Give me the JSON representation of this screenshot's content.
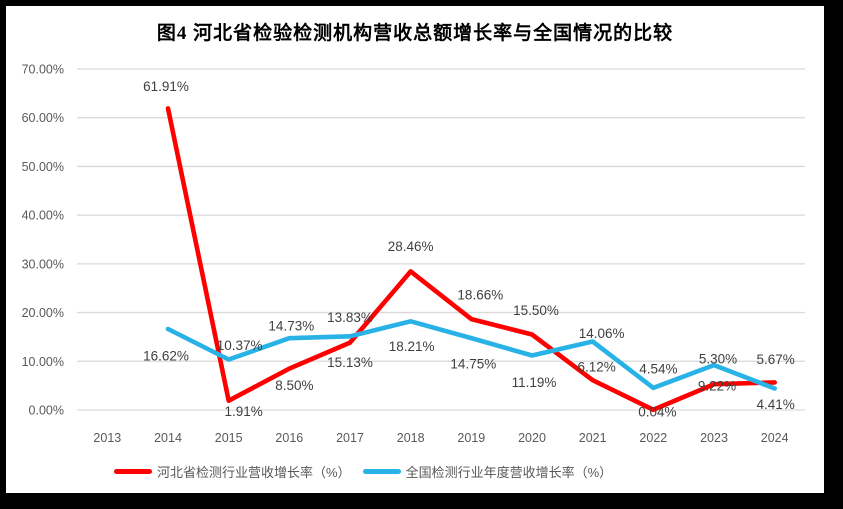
{
  "frame": {
    "background": "#000000",
    "card_background": "#FFFFFF"
  },
  "title": "图4 河北省检验检测机构营收总额增长率与全国情况的比较",
  "colors": {
    "hebei_line": "#FF0000",
    "national_line": "#29B2E6",
    "gridline": "#D9D9D9",
    "axis_text": "#595959",
    "data_label_text": "#3F3F3F",
    "title_text": "#000000"
  },
  "chart_data": {
    "type": "line",
    "title": "图4 河北省检验检测机构营收总额增长率与全国情况的比较",
    "categories": [
      "2013",
      "2014",
      "2015",
      "2016",
      "2017",
      "2018",
      "2019",
      "2020",
      "2021",
      "2022",
      "2023",
      "2024"
    ],
    "xlabel": "",
    "ylabel": "",
    "y_axis": {
      "min": 0,
      "max": 70,
      "step": 10,
      "tick_labels": [
        "0.00%",
        "10.00%",
        "20.00%",
        "30.00%",
        "40.00%",
        "50.00%",
        "60.00%",
        "70.00%"
      ]
    },
    "grid": true,
    "legend_position": "bottom",
    "series": [
      {
        "name": "河北省检测行业营收增长率（%）",
        "color": "#FF0000",
        "points": [
          {
            "year": "2014",
            "v": 61.91,
            "label": "61.91%",
            "dx": -2,
            "dy": -22
          },
          {
            "year": "2015",
            "v": 1.91,
            "label": "1.91%",
            "dx": 15,
            "dy": 11
          },
          {
            "year": "2016",
            "v": 8.5,
            "label": "8.50%",
            "dx": 5,
            "dy": 17
          },
          {
            "year": "2017",
            "v": 13.83,
            "label": "13.83%",
            "dx": 0,
            "dy": -25
          },
          {
            "year": "2018",
            "v": 28.46,
            "label": "28.46%",
            "dx": 0,
            "dy": -25
          },
          {
            "year": "2019",
            "v": 18.66,
            "label": "18.66%",
            "dx": 9,
            "dy": -24
          },
          {
            "year": "2020",
            "v": 15.5,
            "label": "15.50%",
            "dx": 4,
            "dy": -24
          },
          {
            "year": "2021",
            "v": 6.12,
            "label": "6.12%",
            "dx": 4,
            "dy": -13
          },
          {
            "year": "2022",
            "v": 0.04,
            "label": "0.04%",
            "dx": 4,
            "dy": 2
          },
          {
            "year": "2023",
            "v": 5.3,
            "label": "5.30%",
            "dx": 4,
            "dy": -25
          },
          {
            "year": "2024",
            "v": 5.67,
            "label": "5.67%",
            "dx": 1,
            "dy": -23
          }
        ]
      },
      {
        "name": "全国检测行业年度营收增长率（%）",
        "color": "#29B2E6",
        "points": [
          {
            "year": "2014",
            "v": 16.62,
            "label": "16.62%",
            "dx": -2,
            "dy": 27
          },
          {
            "year": "2015",
            "v": 10.37,
            "label": "10.37%",
            "dx": 11,
            "dy": -14
          },
          {
            "year": "2016",
            "v": 14.73,
            "label": "14.73%",
            "dx": 2,
            "dy": -12
          },
          {
            "year": "2017",
            "v": 15.13,
            "label": "15.13%",
            "dx": 0,
            "dy": 26
          },
          {
            "year": "2018",
            "v": 18.21,
            "label": "18.21%",
            "dx": 1,
            "dy": 25
          },
          {
            "year": "2019",
            "v": 14.75,
            "label": "14.75%",
            "dx": 2,
            "dy": 26
          },
          {
            "year": "2020",
            "v": 11.19,
            "label": "11.19%",
            "dx": 2,
            "dy": 27
          },
          {
            "year": "2021",
            "v": 14.06,
            "label": "14.06%",
            "dx": 9,
            "dy": -8
          },
          {
            "year": "2022",
            "v": 4.54,
            "label": "4.54%",
            "dx": 5,
            "dy": -19
          },
          {
            "year": "2023",
            "v": 9.22,
            "label": "9.22%",
            "dx": 3,
            "dy": 21
          },
          {
            "year": "2024",
            "v": 4.41,
            "label": "4.41%",
            "dx": 1,
            "dy": 16
          }
        ]
      }
    ]
  }
}
